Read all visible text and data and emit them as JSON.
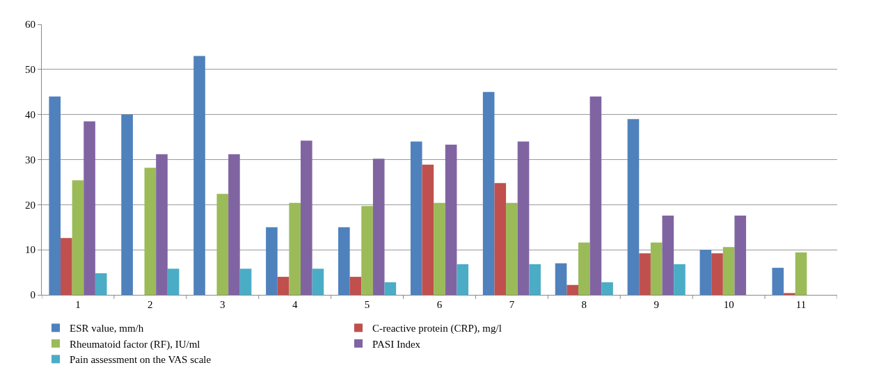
{
  "chart_data": {
    "type": "bar",
    "categories": [
      "1",
      "2",
      "3",
      "4",
      "5",
      "6",
      "7",
      "8",
      "9",
      "10",
      "11"
    ],
    "series": [
      {
        "name": "ESR value, mm/h",
        "color": "#4f81bd",
        "values": [
          44,
          40,
          53,
          15,
          15,
          34,
          45,
          7,
          39,
          10,
          6
        ]
      },
      {
        "name": "C-reactive protein (CRP), mg/l",
        "color": "#c0504d",
        "values": [
          12.6,
          0,
          0,
          4,
          4,
          28.9,
          24.8,
          2.2,
          9.2,
          9.2,
          0.4
        ]
      },
      {
        "name": "Rheumatoid factor (RF), IU/ml",
        "color": "#9bbb59",
        "values": [
          25.4,
          28.2,
          22.4,
          20.4,
          19.7,
          20.4,
          20.4,
          11.6,
          11.6,
          10.6,
          9.4
        ]
      },
      {
        "name": "PASI Index",
        "color": "#8064a2",
        "values": [
          38.5,
          31.2,
          31.2,
          34.2,
          30.2,
          33.3,
          34.0,
          44.0,
          17.6,
          17.6,
          0
        ]
      },
      {
        "name": "Pain assessment on the VAS scale",
        "color": "#4bacc6",
        "values": [
          4.8,
          5.8,
          5.8,
          5.8,
          2.8,
          6.8,
          6.8,
          2.8,
          6.8,
          0,
          0
        ]
      }
    ],
    "ylim": [
      0,
      60
    ],
    "yticks": [
      0,
      10,
      20,
      30,
      40,
      50,
      60
    ],
    "grid": "y",
    "legend": "bottom"
  }
}
